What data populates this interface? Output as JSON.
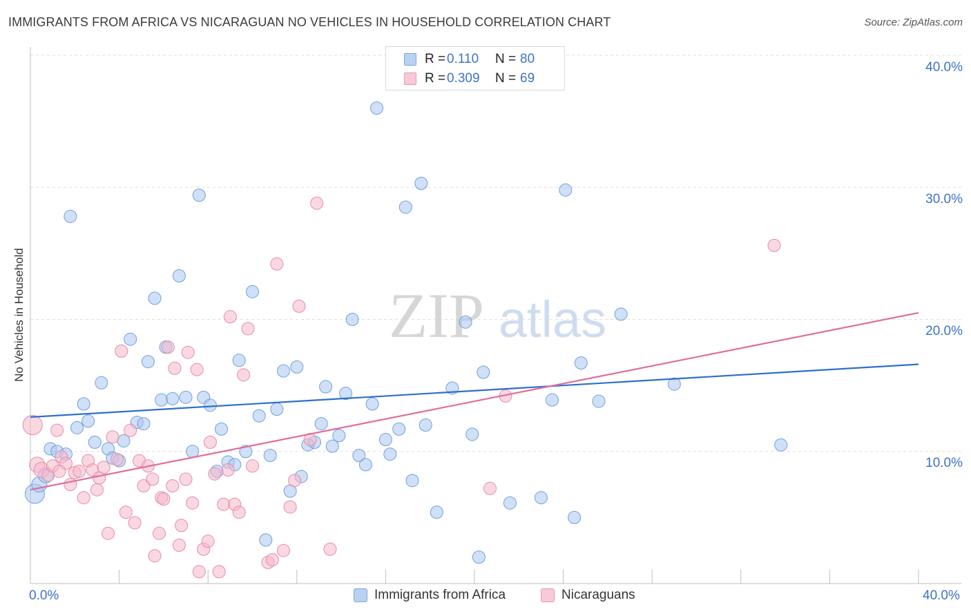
{
  "title": "IMMIGRANTS FROM AFRICA VS NICARAGUAN NO VEHICLES IN HOUSEHOLD CORRELATION CHART",
  "source": "Source: ZipAtlas.com",
  "watermark": {
    "zip": "ZIP",
    "atlas": "atlas"
  },
  "legend": {
    "rows": [
      {
        "r_label": "R =",
        "r_value": "0.110",
        "n_label": "N =",
        "n_value": "80"
      },
      {
        "r_label": "R =",
        "r_value": "0.309",
        "n_label": "N =",
        "n_value": "69"
      }
    ]
  },
  "bottom_legend": [
    "Immigrants from Africa",
    "Nicaraguans"
  ],
  "colors": {
    "blue_fill": "#a9c7f0",
    "blue_stroke": "#6f9fdc",
    "blue_line": "#2e6fc9",
    "pink_fill": "#f6b8cb",
    "pink_stroke": "#e68aa8",
    "pink_line": "#e06c9a",
    "tick_text": "#3d72c4",
    "grid": "#dddddd"
  },
  "chart_data": {
    "type": "scatter",
    "xlabel": "",
    "ylabel": "No Vehicles in Household",
    "xlim": [
      0,
      40
    ],
    "ylim": [
      0,
      40
    ],
    "x_tick_labels": [
      "0.0%",
      "40.0%"
    ],
    "y_tick_labels": [
      "10.0%",
      "20.0%",
      "30.0%",
      "40.0%"
    ],
    "y_ticks": [
      10,
      20,
      30,
      40
    ],
    "grid": "dashed horizontal",
    "legend_position": "top-center",
    "series": [
      {
        "name": "Immigrants from Africa",
        "color": "#a9c7f0",
        "trend": [
          [
            0,
            12.6
          ],
          [
            40,
            16.6
          ]
        ],
        "points": [
          [
            0.2,
            6.8
          ],
          [
            0.4,
            7.5
          ],
          [
            0.7,
            8.2
          ],
          [
            0.9,
            10.2
          ],
          [
            1.2,
            10.0
          ],
          [
            1.6,
            9.8
          ],
          [
            1.8,
            27.8
          ],
          [
            2.1,
            11.8
          ],
          [
            2.4,
            13.6
          ],
          [
            2.6,
            12.3
          ],
          [
            2.9,
            10.7
          ],
          [
            3.2,
            15.2
          ],
          [
            3.5,
            10.2
          ],
          [
            3.7,
            9.5
          ],
          [
            4.0,
            9.3
          ],
          [
            4.2,
            10.8
          ],
          [
            4.5,
            18.5
          ],
          [
            4.8,
            12.2
          ],
          [
            5.1,
            12.1
          ],
          [
            5.3,
            16.8
          ],
          [
            5.6,
            21.6
          ],
          [
            5.9,
            13.9
          ],
          [
            6.1,
            17.9
          ],
          [
            6.4,
            14.0
          ],
          [
            6.7,
            23.3
          ],
          [
            7.0,
            14.1
          ],
          [
            7.3,
            10.0
          ],
          [
            7.6,
            29.4
          ],
          [
            7.8,
            14.1
          ],
          [
            8.1,
            13.5
          ],
          [
            8.4,
            8.5
          ],
          [
            8.6,
            11.7
          ],
          [
            8.9,
            9.2
          ],
          [
            9.2,
            9.0
          ],
          [
            9.4,
            16.9
          ],
          [
            9.7,
            10.0
          ],
          [
            10.0,
            22.1
          ],
          [
            10.3,
            12.7
          ],
          [
            10.6,
            3.3
          ],
          [
            10.8,
            9.7
          ],
          [
            11.1,
            13.2
          ],
          [
            11.4,
            16.1
          ],
          [
            11.7,
            7.0
          ],
          [
            12.0,
            16.4
          ],
          [
            12.2,
            8.1
          ],
          [
            12.5,
            10.5
          ],
          [
            12.8,
            10.7
          ],
          [
            13.1,
            12.1
          ],
          [
            13.3,
            14.9
          ],
          [
            13.6,
            10.4
          ],
          [
            13.9,
            11.2
          ],
          [
            14.2,
            14.4
          ],
          [
            14.5,
            20.0
          ],
          [
            14.8,
            9.7
          ],
          [
            15.1,
            9.0
          ],
          [
            15.4,
            13.6
          ],
          [
            15.6,
            36.0
          ],
          [
            16.0,
            10.9
          ],
          [
            16.2,
            9.8
          ],
          [
            16.6,
            11.7
          ],
          [
            16.9,
            28.5
          ],
          [
            17.2,
            7.8
          ],
          [
            17.6,
            30.3
          ],
          [
            17.8,
            12.0
          ],
          [
            18.3,
            5.4
          ],
          [
            19.0,
            14.8
          ],
          [
            19.6,
            19.8
          ],
          [
            19.9,
            11.3
          ],
          [
            20.2,
            2.0
          ],
          [
            21.6,
            6.1
          ],
          [
            23.0,
            6.5
          ],
          [
            23.5,
            13.9
          ],
          [
            24.1,
            29.8
          ],
          [
            24.5,
            5.0
          ],
          [
            24.8,
            16.7
          ],
          [
            25.6,
            13.8
          ],
          [
            26.6,
            20.4
          ],
          [
            29.0,
            15.1
          ],
          [
            33.8,
            10.5
          ],
          [
            20.4,
            16.0
          ]
        ]
      },
      {
        "name": "Nicaraguans",
        "color": "#f6b8cb",
        "trend": [
          [
            0,
            7.1
          ],
          [
            40,
            20.5
          ]
        ],
        "points": [
          [
            0.1,
            12.0
          ],
          [
            0.3,
            9.0
          ],
          [
            0.5,
            8.6
          ],
          [
            0.8,
            8.2
          ],
          [
            1.0,
            8.9
          ],
          [
            1.2,
            11.6
          ],
          [
            1.4,
            9.6
          ],
          [
            1.6,
            9.1
          ],
          [
            1.8,
            7.5
          ],
          [
            2.0,
            8.4
          ],
          [
            2.2,
            8.5
          ],
          [
            2.4,
            6.5
          ],
          [
            2.6,
            9.3
          ],
          [
            2.8,
            8.6
          ],
          [
            3.0,
            7.1
          ],
          [
            3.1,
            8.0
          ],
          [
            3.3,
            8.8
          ],
          [
            3.5,
            3.8
          ],
          [
            3.7,
            11.1
          ],
          [
            3.9,
            9.4
          ],
          [
            4.1,
            17.6
          ],
          [
            4.3,
            5.4
          ],
          [
            4.5,
            11.6
          ],
          [
            4.7,
            4.6
          ],
          [
            4.9,
            9.3
          ],
          [
            5.1,
            7.4
          ],
          [
            5.3,
            8.9
          ],
          [
            5.5,
            7.9
          ],
          [
            5.6,
            2.1
          ],
          [
            5.8,
            3.8
          ],
          [
            5.9,
            6.5
          ],
          [
            6.0,
            6.4
          ],
          [
            6.2,
            17.9
          ],
          [
            6.4,
            7.4
          ],
          [
            6.5,
            16.3
          ],
          [
            6.7,
            2.9
          ],
          [
            6.8,
            4.4
          ],
          [
            7.0,
            7.9
          ],
          [
            7.1,
            17.5
          ],
          [
            7.3,
            6.1
          ],
          [
            7.5,
            16.2
          ],
          [
            7.6,
            0.9
          ],
          [
            7.8,
            2.6
          ],
          [
            8.0,
            3.2
          ],
          [
            8.1,
            10.7
          ],
          [
            8.3,
            8.3
          ],
          [
            8.5,
            0.9
          ],
          [
            8.7,
            6.0
          ],
          [
            8.9,
            8.6
          ],
          [
            9.0,
            20.2
          ],
          [
            9.2,
            6.0
          ],
          [
            9.4,
            5.4
          ],
          [
            9.6,
            15.8
          ],
          [
            9.8,
            19.3
          ],
          [
            10.0,
            8.9
          ],
          [
            10.7,
            1.6
          ],
          [
            10.9,
            1.8
          ],
          [
            11.1,
            24.2
          ],
          [
            11.4,
            2.5
          ],
          [
            11.7,
            5.8
          ],
          [
            11.9,
            7.8
          ],
          [
            12.1,
            21.0
          ],
          [
            12.6,
            10.9
          ],
          [
            12.9,
            28.8
          ],
          [
            13.5,
            2.6
          ],
          [
            20.7,
            7.2
          ],
          [
            21.4,
            14.2
          ],
          [
            33.5,
            25.6
          ],
          [
            1.3,
            8.5
          ]
        ]
      }
    ]
  }
}
